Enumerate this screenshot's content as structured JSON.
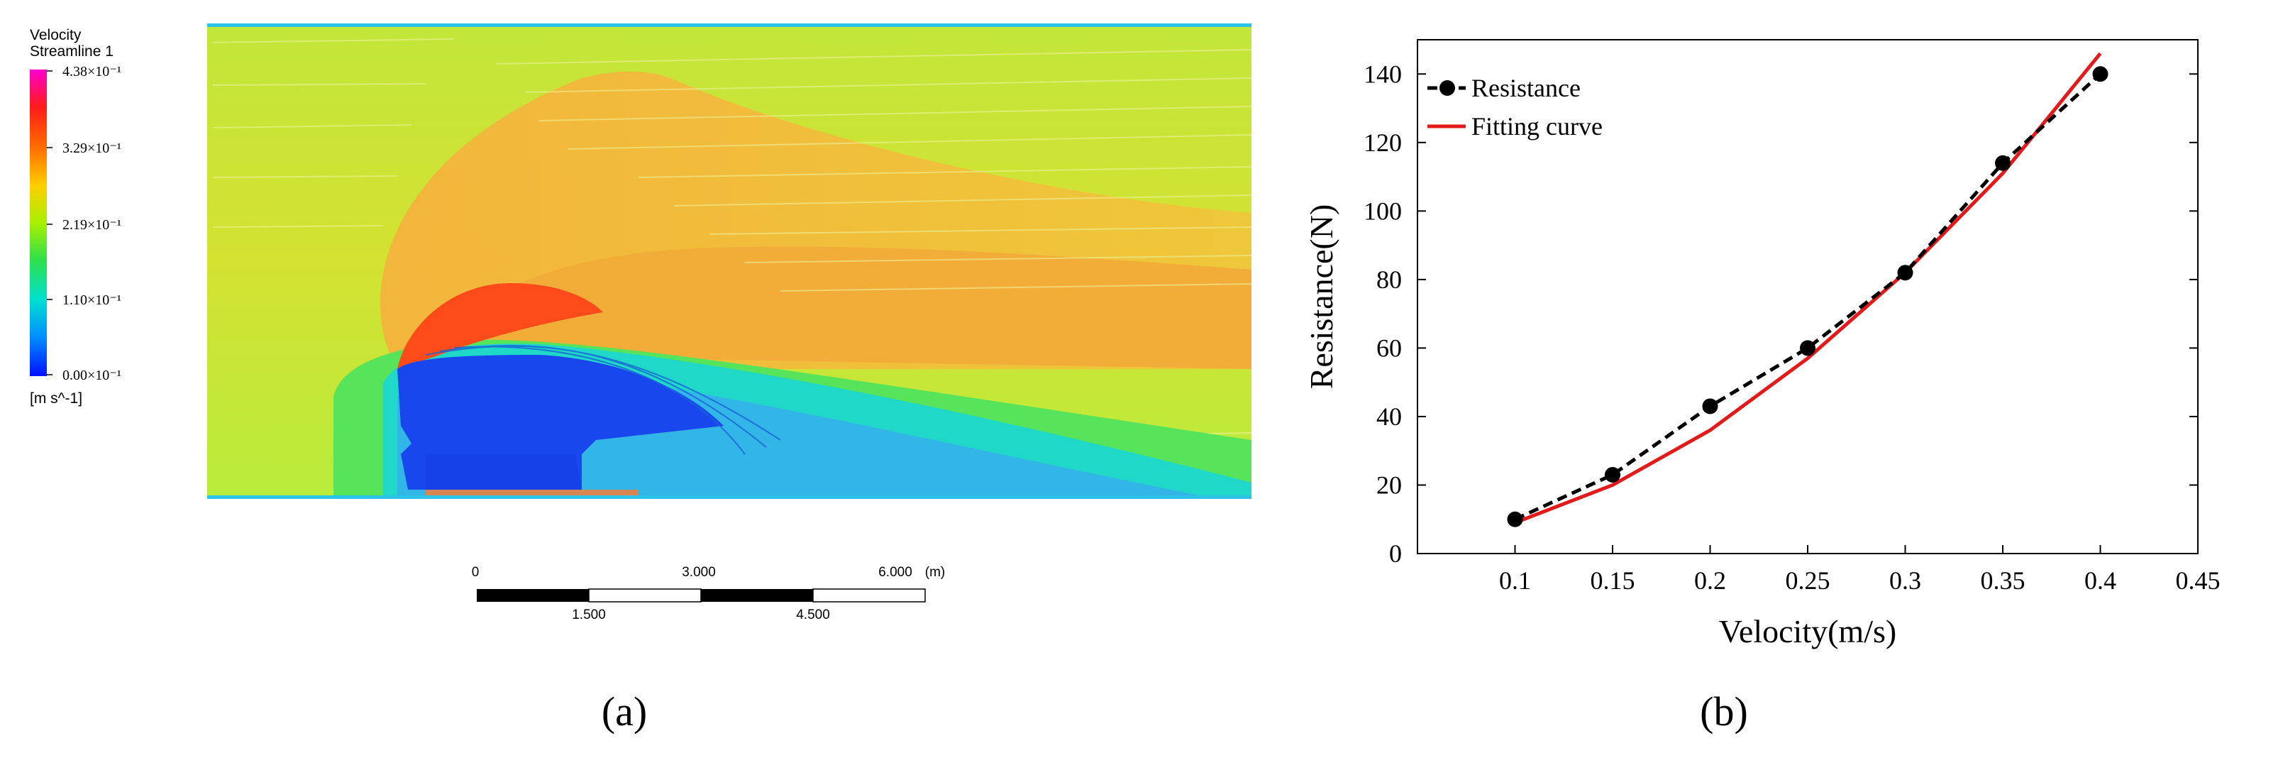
{
  "panel_a": {
    "caption": "(a)",
    "legend": {
      "title_line1": "Velocity",
      "title_line2": "Streamline 1",
      "ticks": [
        "4.38×10⁻¹",
        "3.29×10⁻¹",
        "2.19×10⁻¹",
        "1.10×10⁻¹",
        "0.00×10⁻¹"
      ],
      "unit": "[m s^-1]",
      "colors": [
        "#ff00d0",
        "#ff1a1a",
        "#ff8c00",
        "#ffd000",
        "#c8ff00",
        "#33e633",
        "#00e0c0",
        "#00a0ff",
        "#0020ff"
      ]
    },
    "scale_bar": {
      "top_labels": [
        "0",
        "3.000",
        "6.000"
      ],
      "bottom_labels": [
        "1.500",
        "4.500"
      ],
      "unit": "(m)"
    },
    "field_colors": {
      "background": "#c6e83a",
      "wake_yellow": "#e9dc2e",
      "orange": "#f2a93b",
      "red": "#ff4f1a",
      "green": "#2fe56f",
      "cyan": "#19d3d9",
      "blue": "#1849f0",
      "boundary": "#2bc4e8"
    }
  },
  "panel_b": {
    "caption": "(b)",
    "chart_data": {
      "type": "line",
      "xlabel": "Velocity(m/s)",
      "ylabel": "Resistance(N)",
      "xlim": [
        0.05,
        0.45
      ],
      "ylim": [
        0,
        150
      ],
      "xticks": [
        0.1,
        0.15,
        0.2,
        0.25,
        0.3,
        0.35,
        0.4,
        0.45
      ],
      "xtick_labels": [
        "0.1",
        "0.15",
        "0.2",
        "0.25",
        "0.3",
        "0.35",
        "0.4",
        "0.45"
      ],
      "yticks": [
        0,
        20,
        40,
        60,
        80,
        100,
        120,
        140
      ],
      "ytick_labels": [
        "0",
        "20",
        "40",
        "60",
        "80",
        "100",
        "120",
        "140"
      ],
      "grid": false,
      "legend_position": "top-left",
      "series": [
        {
          "name": "Resistance",
          "style": "dashed-markers",
          "color": "#000000",
          "x": [
            0.1,
            0.15,
            0.2,
            0.25,
            0.3,
            0.35,
            0.4
          ],
          "y": [
            10,
            23,
            43,
            60,
            82,
            114,
            140
          ]
        },
        {
          "name": "Fitting curve",
          "style": "solid",
          "color": "#e41a1a",
          "x": [
            0.1,
            0.15,
            0.2,
            0.25,
            0.3,
            0.35,
            0.4
          ],
          "y": [
            9,
            20,
            36,
            57,
            82,
            111,
            146
          ]
        }
      ]
    }
  }
}
